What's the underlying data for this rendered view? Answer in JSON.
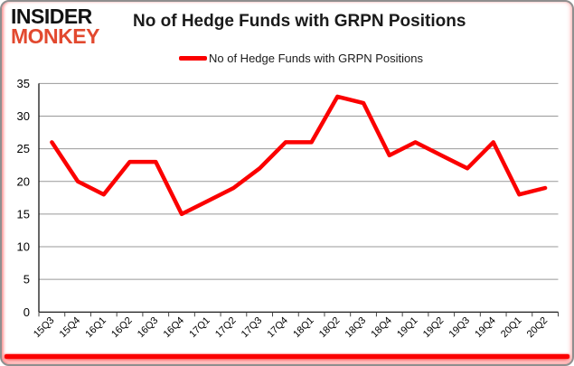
{
  "logo": {
    "line1": "INSIDER",
    "line2": "MONKEY"
  },
  "title": "No of Hedge Funds with GRPN Positions",
  "legend": {
    "label": "No of Hedge Funds with GRPN Positions"
  },
  "colors": {
    "line": "#fb0000",
    "grid": "#999999",
    "axis": "#000000",
    "tick": "#444444",
    "label": "#000000",
    "logo_primary": "#121212",
    "logo_accent": "#e2492f",
    "accent_bar": "#fb0000"
  },
  "chart_data": {
    "type": "line",
    "title": "No of Hedge Funds with GRPN Positions",
    "categories": [
      "15Q3",
      "15Q4",
      "16Q1",
      "16Q2",
      "16Q3",
      "16Q4",
      "17Q1",
      "17Q2",
      "17Q3",
      "17Q4",
      "18Q1",
      "18Q2",
      "18Q3",
      "18Q4",
      "19Q1",
      "19Q2",
      "19Q3",
      "19Q4",
      "20Q1",
      "20Q2"
    ],
    "series": [
      {
        "name": "No of Hedge Funds with GRPN Positions",
        "color": "#fb0000",
        "values": [
          26,
          20,
          18,
          23,
          23,
          15,
          17,
          19,
          22,
          26,
          26,
          33,
          32,
          24,
          26,
          24,
          22,
          26,
          18,
          19
        ]
      }
    ],
    "xlabel": "",
    "ylabel": "",
    "ylim": [
      0,
      35
    ],
    "yticks": [
      0,
      5,
      10,
      15,
      20,
      25,
      30,
      35
    ],
    "grid": true,
    "legend_position": "top"
  }
}
